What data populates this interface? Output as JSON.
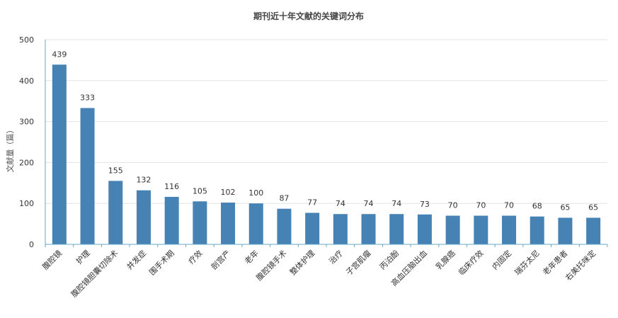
{
  "chart_data": {
    "type": "bar",
    "title": "期刊近十年文献的关键词分布",
    "xlabel": "",
    "ylabel": "文献量（篇）",
    "ylim": [
      0,
      500
    ],
    "yticks": [
      0,
      100,
      200,
      300,
      400,
      500
    ],
    "grid": true,
    "bar_color": "#4682b4",
    "categories": [
      "腹腔镜",
      "护理",
      "腹腔镜胆囊切除术",
      "并发症",
      "围手术期",
      "疗效",
      "剖宫产",
      "老年",
      "腹腔镜手术",
      "整体护理",
      "治疗",
      "子宫肌瘤",
      "丙泊酚",
      "高血压脑出血",
      "乳腺癌",
      "临床疗效",
      "内固定",
      "瑞芬太尼",
      "老年患者",
      "右美托咪定"
    ],
    "values": [
      439,
      333,
      155,
      132,
      116,
      105,
      102,
      100,
      87,
      77,
      74,
      74,
      74,
      73,
      70,
      70,
      70,
      68,
      65,
      65
    ]
  }
}
